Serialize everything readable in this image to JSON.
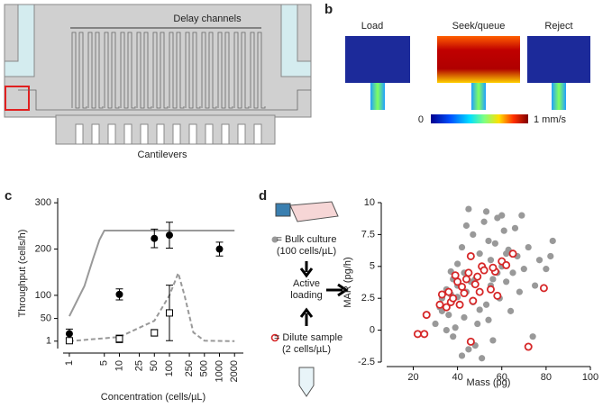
{
  "panel_labels": [
    "a",
    "b",
    "c",
    "d"
  ],
  "diagram_a": {
    "title": "Delay channels",
    "bottom": "Cantilevers"
  },
  "diagram_b": {
    "views": [
      "Load",
      "Seek/queue",
      "Reject"
    ],
    "colorbar": {
      "min": "0",
      "max": "1 mm/s"
    }
  },
  "flow_d": {
    "bulk": "= Bulk culture",
    "bulk_conc": "(100 cells/µL)",
    "loading": [
      "Active",
      "loading"
    ],
    "dilute": "= Dilute sample",
    "dilute_conc": "(2 cells/µL)"
  },
  "chart_data": [
    {
      "type": "errorbar",
      "x_label": "Concentration (cells/µL)",
      "y_label": "Throughput (cells/h)",
      "log_x": true,
      "xlim": [
        0.75,
        3000
      ],
      "xticks": [
        1,
        5,
        10,
        25,
        50,
        100,
        250,
        500,
        1000,
        2000
      ],
      "ylim": [
        -15,
        310
      ],
      "yticks": [
        1,
        50,
        100,
        200,
        300
      ],
      "series": [
        {
          "kind": "line",
          "style": "solid",
          "color": "#999999",
          "x": [
            1,
            2,
            3,
            4,
            5,
            2000
          ],
          "values": [
            55,
            120,
            180,
            220,
            240,
            240
          ]
        },
        {
          "kind": "line",
          "style": "dashed",
          "color": "#999999",
          "x": [
            1,
            10,
            50,
            100,
            150,
            200,
            300,
            500,
            2000
          ],
          "values": [
            1,
            10,
            45,
            100,
            148,
            100,
            20,
            2,
            1
          ]
        },
        {
          "kind": "points",
          "marker": "filled-circle",
          "color": "#000000",
          "x": [
            1,
            10,
            50,
            100,
            1000
          ],
          "values": [
            17,
            102,
            223,
            230,
            200
          ],
          "errors": [
            10,
            12,
            20,
            28,
            15
          ]
        },
        {
          "kind": "points",
          "marker": "open-square",
          "color": "#000000",
          "x": [
            1,
            10,
            50,
            100
          ],
          "values": [
            2,
            6,
            19,
            62
          ],
          "errors": [
            3,
            8,
            7,
            60
          ]
        }
      ]
    },
    {
      "type": "scatter",
      "x_label": "Mass (pg)",
      "y_label": "MAR (pg/h)",
      "xlim": [
        8,
        100
      ],
      "xticks": [
        20,
        40,
        60,
        80,
        100
      ],
      "ylim": [
        -2.5,
        10
      ],
      "yticks": [
        -2.5,
        0,
        2.5,
        5,
        7.5,
        10
      ],
      "series": [
        {
          "marker": "filled",
          "color": "#999999",
          "x": [
            22,
            30,
            32,
            33,
            35,
            36,
            37,
            38,
            39,
            40,
            40,
            41,
            42,
            43,
            43,
            44,
            45,
            45,
            46,
            47,
            47,
            48,
            49,
            50,
            50,
            51,
            52,
            52,
            53,
            54,
            55,
            55,
            56,
            57,
            58,
            58,
            59,
            60,
            61,
            62,
            63,
            64,
            65,
            66,
            67,
            68,
            69,
            70,
            72,
            74,
            75,
            77,
            80,
            82,
            83,
            35,
            38,
            42,
            48,
            44,
            53,
            60,
            40,
            46,
            50,
            56,
            62,
            33,
            37,
            54
          ],
          "values": [
            -0.3,
            0.5,
            1.8,
            2.5,
            3.2,
            1.2,
            2.8,
            4.0,
            0.2,
            3.5,
            5.2,
            2.0,
            6.5,
            4.5,
            1.0,
            3.0,
            9.5,
            -1.5,
            5.8,
            2.2,
            7.5,
            4.0,
            0.5,
            6.0,
            3.0,
            -2.2,
            8.5,
            4.8,
            2.0,
            7.0,
            5.5,
            3.5,
            -0.8,
            6.8,
            8.8,
            4.5,
            2.5,
            5.0,
            7.8,
            3.8,
            6.3,
            1.5,
            4.5,
            8.0,
            5.8,
            3.0,
            9.0,
            4.8,
            6.5,
            -0.5,
            3.5,
            5.5,
            4.8,
            5.8,
            7.0,
            0.0,
            -0.5,
            -2.0,
            -1.2,
            8.2,
            9.3,
            9.0,
            2.6,
            3.8,
            1.6,
            4.0,
            6.0,
            1.5,
            4.6,
            0.8
          ]
        },
        {
          "marker": "open",
          "color": "#d62728",
          "x": [
            22,
            25,
            26,
            32,
            33,
            35,
            36,
            37,
            38,
            39,
            40,
            41,
            42,
            43,
            44,
            45,
            46,
            47,
            48,
            49,
            50,
            51,
            52,
            55,
            57,
            58,
            60,
            62,
            65,
            72,
            79,
            46,
            56
          ],
          "values": [
            -0.3,
            -0.3,
            1.2,
            2.0,
            2.8,
            1.8,
            3.0,
            2.2,
            2.5,
            4.3,
            3.8,
            2.0,
            3.4,
            2.9,
            4.0,
            4.5,
            -0.9,
            2.3,
            3.6,
            4.2,
            3.0,
            5.0,
            4.7,
            3.2,
            4.6,
            2.7,
            5.4,
            5.1,
            6.0,
            -1.3,
            3.3,
            5.8,
            4.9
          ]
        }
      ]
    }
  ]
}
